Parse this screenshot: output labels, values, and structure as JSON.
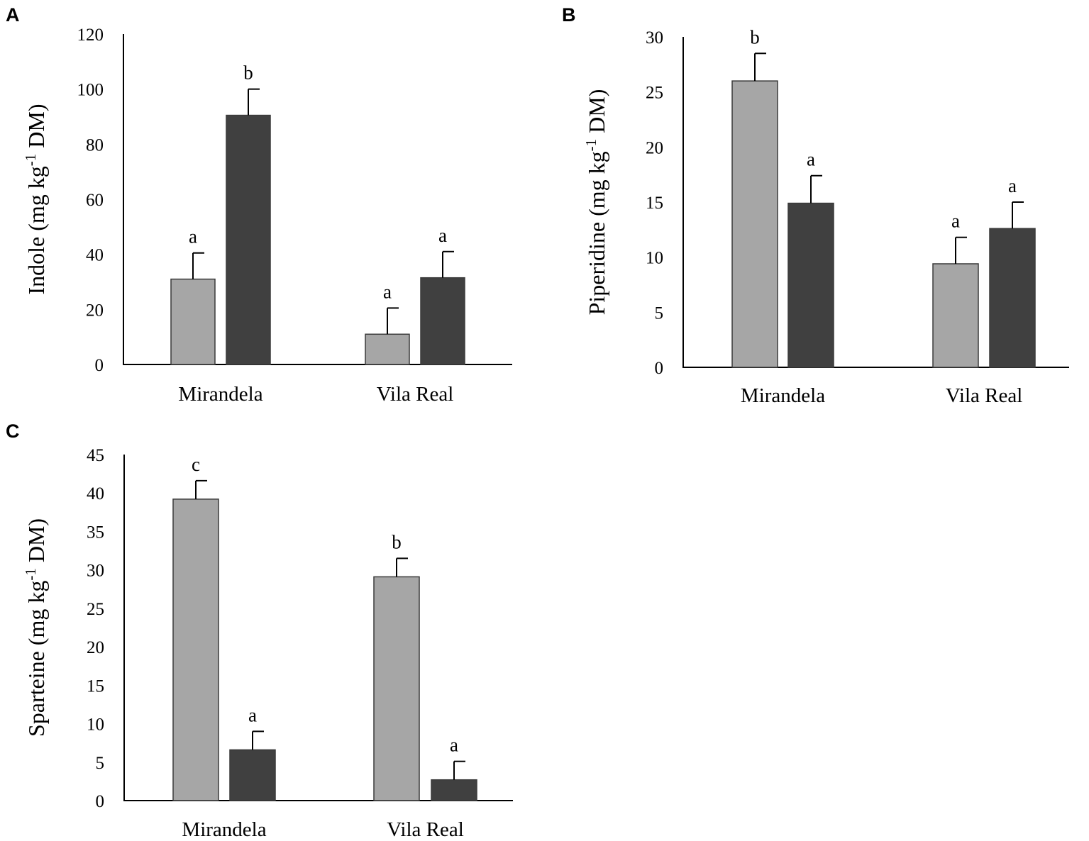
{
  "colors": {
    "light_bar": "#a6a6a6",
    "dark_bar": "#404040",
    "bar_edge": "#3a3a3a"
  },
  "chart_data": [
    {
      "type": "bar",
      "panel": "A",
      "title": "",
      "xlabel": "",
      "ylabel": {
        "main": "Indole (mg kg",
        "sup": "-1",
        "unit": " DM)"
      },
      "ylim": [
        0,
        120
      ],
      "yticks": [
        0,
        20,
        40,
        60,
        80,
        100,
        120
      ],
      "categories": [
        "Mirandela",
        "Vila Real"
      ],
      "series": [
        {
          "name": "light",
          "values": [
            31,
            11
          ],
          "errors": [
            9.5,
            9.5
          ],
          "letters": [
            "a",
            "a"
          ]
        },
        {
          "name": "dark",
          "values": [
            90.5,
            31.5
          ],
          "errors": [
            9.5,
            9.5
          ],
          "letters": [
            "b",
            "a"
          ]
        }
      ]
    },
    {
      "type": "bar",
      "panel": "B",
      "title": "",
      "xlabel": "",
      "ylabel": {
        "main": "Piperidine (mg kg",
        "sup": "-1",
        "unit": " DM)"
      },
      "ylim": [
        0,
        30
      ],
      "yticks": [
        0,
        5,
        10,
        15,
        20,
        25,
        30
      ],
      "categories": [
        "Mirandela",
        "Vila Real"
      ],
      "series": [
        {
          "name": "light",
          "values": [
            26,
            9.4
          ],
          "errors": [
            2.5,
            2.4
          ],
          "letters": [
            "b",
            "a"
          ]
        },
        {
          "name": "dark",
          "values": [
            14.9,
            12.6
          ],
          "errors": [
            2.5,
            2.4
          ],
          "letters": [
            "a",
            "a"
          ]
        }
      ]
    },
    {
      "type": "bar",
      "panel": "C",
      "title": "",
      "xlabel": "",
      "ylabel": {
        "main": "Sparteine (mg kg",
        "sup": "-1",
        "unit": " DM)"
      },
      "ylim": [
        0,
        45
      ],
      "yticks": [
        0,
        5,
        10,
        15,
        20,
        25,
        30,
        35,
        40,
        45
      ],
      "categories": [
        "Mirandela",
        "Vila Real"
      ],
      "series": [
        {
          "name": "light",
          "values": [
            39.2,
            29.1
          ],
          "errors": [
            2.4,
            2.4
          ],
          "letters": [
            "c",
            "b"
          ]
        },
        {
          "name": "dark",
          "values": [
            6.6,
            2.7
          ],
          "errors": [
            2.4,
            2.4
          ],
          "letters": [
            "a",
            "a"
          ]
        }
      ]
    }
  ]
}
